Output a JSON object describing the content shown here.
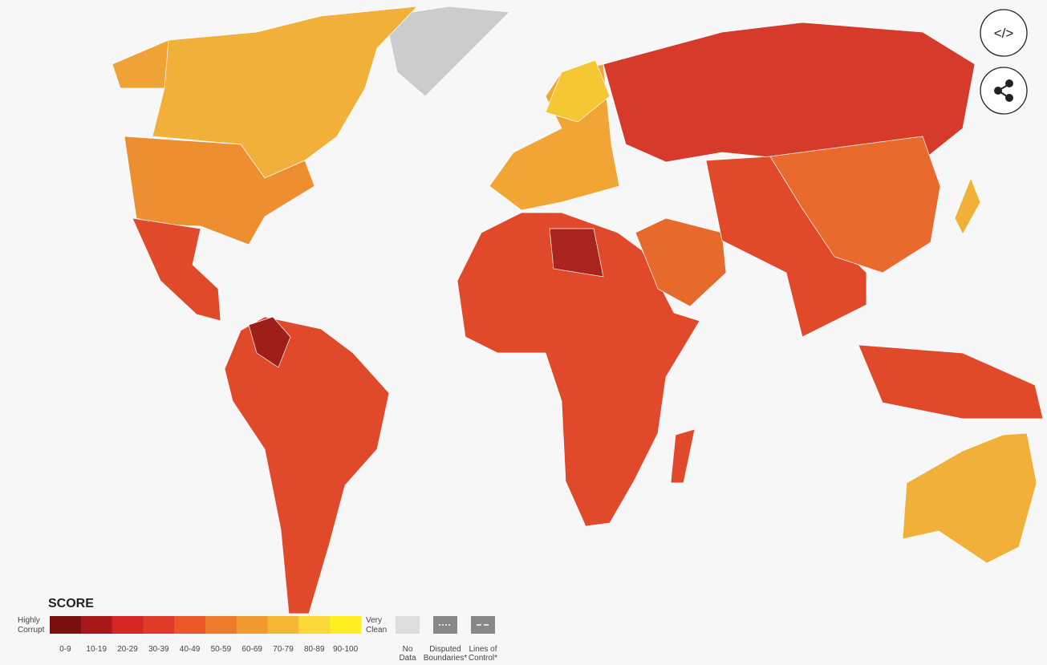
{
  "legend": {
    "title": "SCORE",
    "low_label": [
      "Highly",
      "Corrupt"
    ],
    "high_label": [
      "Very",
      "Clean"
    ],
    "bins": [
      {
        "label": "0-9",
        "color": "#7a1010"
      },
      {
        "label": "10-19",
        "color": "#a8181a"
      },
      {
        "label": "20-29",
        "color": "#d42626"
      },
      {
        "label": "30-39",
        "color": "#e03a28"
      },
      {
        "label": "40-49",
        "color": "#e9572a"
      },
      {
        "label": "50-59",
        "color": "#ee7a2c"
      },
      {
        "label": "60-69",
        "color": "#f19a30"
      },
      {
        "label": "70-79",
        "color": "#f5b735"
      },
      {
        "label": "80-89",
        "color": "#f9d93a"
      },
      {
        "label": "90-100",
        "color": "#ffee22"
      }
    ],
    "extras": [
      {
        "label": [
          "No",
          "Data"
        ]
      },
      {
        "label": [
          "Disputed",
          "Boundaries*"
        ]
      },
      {
        "label": [
          "Lines of",
          "Control*"
        ]
      }
    ]
  },
  "buttons": {
    "embed": "</>"
  }
}
